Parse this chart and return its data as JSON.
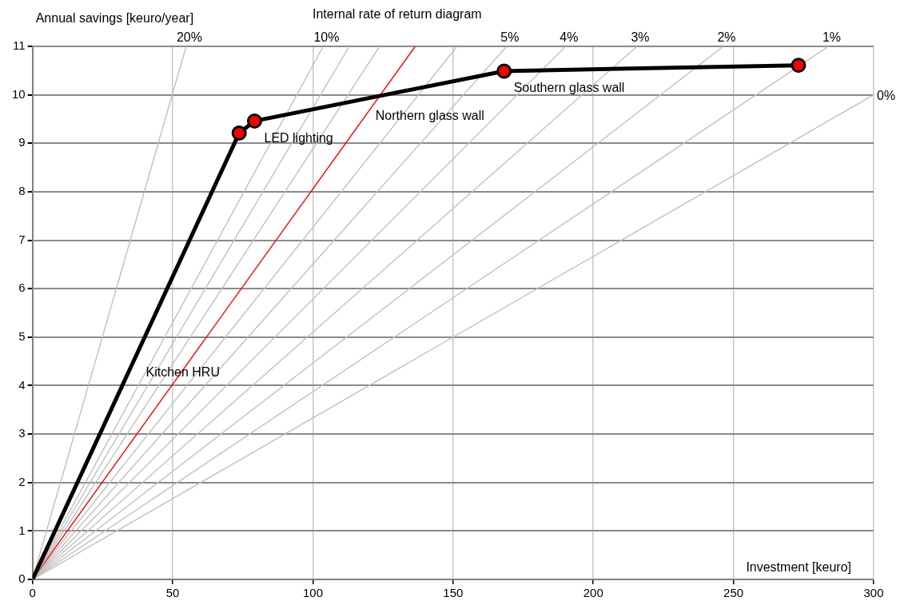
{
  "chart_data": {
    "type": "line",
    "title": "Internal rate of return diagram",
    "xlabel": "Investment [keuro]",
    "ylabel": "Annual savings [keuro/year]",
    "xlim": [
      0,
      300
    ],
    "xticks": [
      0,
      50,
      100,
      150,
      200,
      250,
      300
    ],
    "ylim": [
      0,
      11
    ],
    "yticks": [
      0,
      1,
      2,
      3,
      4,
      5,
      6,
      7,
      8,
      9,
      10,
      11
    ],
    "grid": true,
    "legend": false,
    "line_style": "solid",
    "series": [
      {
        "color": "#000000",
        "marker": "circle",
        "colors": [
          null,
          "#ff0000",
          "#ff0000",
          "#ff0000",
          "#ff0000"
        ],
        "x": [
          0,
          73.7,
          79.2,
          168.2,
          273.2
        ],
        "values": [
          0,
          9.21,
          9.46,
          10.49,
          10.61
        ]
      },
      {
        "name": "20%",
        "color": "#c0c0c0",
        "marker": "none",
        "x": [
          0,
          54.8
        ],
        "values": [
          0,
          11
        ]
      },
      {
        "name": "10%",
        "color": "#c0c0c0",
        "marker": "none",
        "x": [
          0,
          103.7
        ],
        "values": [
          0,
          11
        ]
      },
      {
        "color": "#c0c0c0",
        "marker": "none",
        "x": [
          0,
          113
        ],
        "values": [
          0,
          11
        ]
      },
      {
        "color": "#c0c0c0",
        "marker": "none",
        "x": [
          0,
          123.8
        ],
        "values": [
          0,
          11
        ]
      },
      {
        "color": "#ff0000",
        "marker": "none",
        "x": [
          0,
          136.5
        ],
        "values": [
          0,
          11
        ]
      },
      {
        "color": "#c0c0c0",
        "marker": "none",
        "x": [
          0,
          151.4
        ],
        "values": [
          0,
          11
        ]
      },
      {
        "name": "5%",
        "color": "#c0c0c0",
        "marker": "none",
        "x": [
          0,
          169.1
        ],
        "values": [
          0,
          11
        ]
      },
      {
        "name": "4%",
        "color": "#c0c0c0",
        "marker": "none",
        "x": [
          0,
          190.2
        ],
        "values": [
          0,
          11
        ]
      },
      {
        "name": "3%",
        "color": "#c0c0c0",
        "marker": "none",
        "x": [
          0,
          215.6
        ],
        "values": [
          0,
          11
        ]
      },
      {
        "name": "2%",
        "color": "#c0c0c0",
        "marker": "none",
        "x": [
          0,
          246.4
        ],
        "values": [
          0,
          11
        ]
      },
      {
        "name": "1%",
        "color": "#c0c0c0",
        "marker": "none",
        "x": [
          0,
          283.9
        ],
        "values": [
          0,
          11
        ]
      },
      {
        "name": "0%",
        "color": "#c0c0c0",
        "marker": "none",
        "x": [
          0,
          300
        ],
        "values": [
          0,
          10
        ]
      }
    ],
    "annotations": [
      {
        "text": "Kitchen HRU",
        "x": 37,
        "y": 4.62
      },
      {
        "text": "LED lighting",
        "x": 79.2,
        "y": 9.46
      },
      {
        "text": "Northern glass wall",
        "x": 118.9,
        "y": 9.92
      },
      {
        "text": "Southern glass wall",
        "x": 168.2,
        "y": 10.49
      }
    ]
  }
}
